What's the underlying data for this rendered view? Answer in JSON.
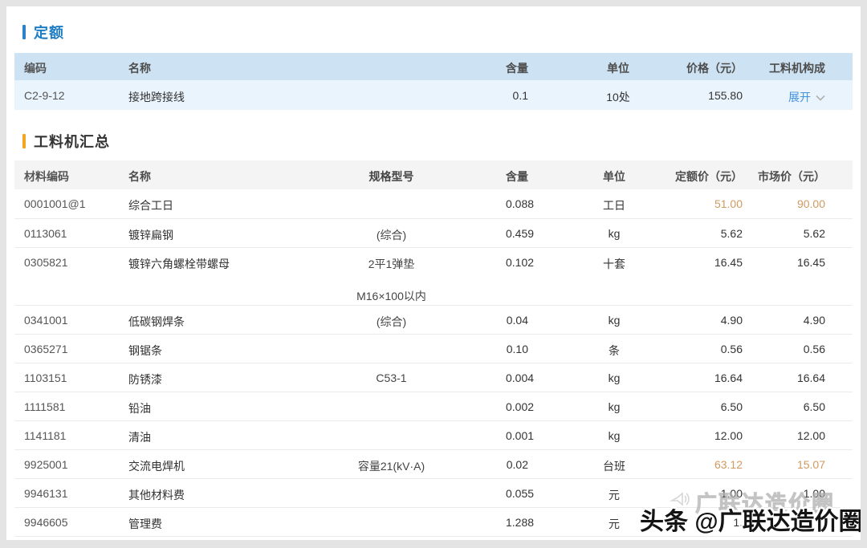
{
  "quota": {
    "title": "定额",
    "columns": [
      "编码",
      "名称",
      "含量",
      "单位",
      "价格（元）",
      "工料机构成"
    ],
    "row": {
      "code": "C2-9-12",
      "name": "接地跨接线",
      "quantity": "0.1",
      "unit": "10处",
      "price": "155.80",
      "expand_label": "展开"
    }
  },
  "summary": {
    "title": "工料机汇总",
    "columns": [
      "材料编码",
      "名称",
      "规格型号",
      "含量",
      "单位",
      "定额价（元）",
      "市场价（元）"
    ],
    "rows": [
      {
        "code": "0001001@1",
        "name": "综合工日",
        "spec": "",
        "qty": "0.088",
        "unit": "工日",
        "quota_price": "51.00",
        "market_price": "90.00",
        "highlight": true
      },
      {
        "code": "0113061",
        "name": "镀锌扁钢",
        "spec": "(综合)",
        "qty": "0.459",
        "unit": "kg",
        "quota_price": "5.62",
        "market_price": "5.62"
      },
      {
        "code": "0305821",
        "name": "镀锌六角螺栓带螺母",
        "spec": "2平1弹垫",
        "spec2": "M16×100以内",
        "qty": "0.102",
        "unit": "十套",
        "quota_price": "16.45",
        "market_price": "16.45"
      },
      {
        "code": "0341001",
        "name": "低碳钢焊条",
        "spec": "(综合)",
        "qty": "0.04",
        "unit": "kg",
        "quota_price": "4.90",
        "market_price": "4.90"
      },
      {
        "code": "0365271",
        "name": "钢锯条",
        "spec": "",
        "qty": "0.10",
        "unit": "条",
        "quota_price": "0.56",
        "market_price": "0.56"
      },
      {
        "code": "1103151",
        "name": "防锈漆",
        "spec": "C53-1",
        "qty": "0.004",
        "unit": "kg",
        "quota_price": "16.64",
        "market_price": "16.64"
      },
      {
        "code": "1111581",
        "name": "铅油",
        "spec": "",
        "qty": "0.002",
        "unit": "kg",
        "quota_price": "6.50",
        "market_price": "6.50"
      },
      {
        "code": "1141181",
        "name": "清油",
        "spec": "",
        "qty": "0.001",
        "unit": "kg",
        "quota_price": "12.00",
        "market_price": "12.00"
      },
      {
        "code": "9925001",
        "name": "交流电焊机",
        "spec": "容量21(kV·A)",
        "qty": "0.02",
        "unit": "台班",
        "quota_price": "63.12",
        "market_price": "15.07",
        "highlight": true
      },
      {
        "code": "9946131",
        "name": "其他材料费",
        "spec": "",
        "qty": "0.055",
        "unit": "元",
        "quota_price": "1.00",
        "market_price": "1.00"
      },
      {
        "code": "9946605",
        "name": "管理费",
        "spec": "",
        "qty": "1.288",
        "unit": "元",
        "quota_price": "1.",
        "market_price": "0"
      }
    ]
  },
  "watermarks": {
    "faint_text": "广联达造价圈",
    "bold_text": "头条 @广联达造价圈"
  },
  "colors": {
    "accent_blue": "#1e7dc4",
    "accent_orange": "#f3a623",
    "link_blue": "#4191dd",
    "highlight_orange": "#cf9a62",
    "quota_header_bg": "#cde2f3",
    "quota_row_bg": "#eaf4fc",
    "summary_header_bg": "#f4f4f4"
  }
}
